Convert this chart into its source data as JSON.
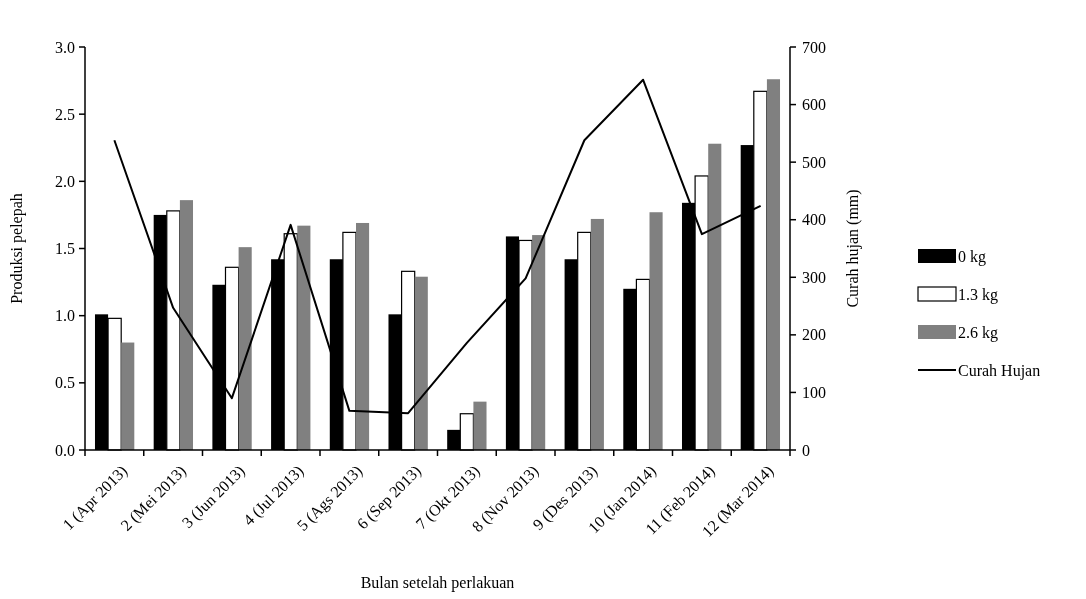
{
  "chart_data": {
    "type": "bar",
    "xlabel": "Bulan setelah perlakuan",
    "ylabel": "Produksi pelepah",
    "y2label": "Curah hujan (mm)",
    "categories": [
      "1 (Apr 2013)",
      "2 (Mei 2013)",
      "3 (Jun 2013)",
      "4 (Jul 2013)",
      "5 (Ags 2013)",
      "6 (Sep 2013)",
      "7 (Okt 2013)",
      "8 (Nov 2013)",
      "9 (Des 2013)",
      "10 (Jan 2014)",
      "11 (Feb 2014)",
      "12 (Mar 2014)"
    ],
    "series": [
      {
        "name": "0 kg",
        "color": "#000000",
        "values": [
          1.01,
          1.75,
          1.23,
          1.42,
          1.42,
          1.01,
          0.15,
          1.59,
          1.42,
          1.2,
          1.84,
          2.27
        ]
      },
      {
        "name": "1.3 kg",
        "color": "#ffffff",
        "values": [
          0.98,
          1.78,
          1.36,
          1.61,
          1.62,
          1.33,
          0.27,
          1.56,
          1.62,
          1.27,
          2.04,
          2.67
        ]
      },
      {
        "name": "2.6 kg",
        "color": "#808080",
        "values": [
          0.8,
          1.86,
          1.51,
          1.67,
          1.69,
          1.29,
          0.36,
          1.6,
          1.72,
          1.77,
          2.28,
          2.76
        ]
      },
      {
        "name": "Curah Hujan",
        "type": "line",
        "axis": "y2",
        "color": "#000000",
        "values": [
          538,
          247,
          90,
          391,
          68,
          64,
          186,
          298,
          538,
          643,
          375,
          424
        ]
      }
    ],
    "ylim": [
      0,
      3
    ],
    "yticks": [
      {
        "value": 0,
        "label": "0.0"
      },
      0.5,
      {
        "value": 1,
        "label": "1.0"
      },
      1.5,
      {
        "value": 2,
        "label": "2.0"
      },
      2.5,
      {
        "value": 3,
        "label": "3.0"
      }
    ],
    "y2lim": [
      0,
      700
    ],
    "y2ticks": [
      0,
      100,
      200,
      300,
      400,
      500,
      600,
      700
    ],
    "legend": "right",
    "grid": false,
    "marker": "none",
    "line_style": "solid"
  }
}
